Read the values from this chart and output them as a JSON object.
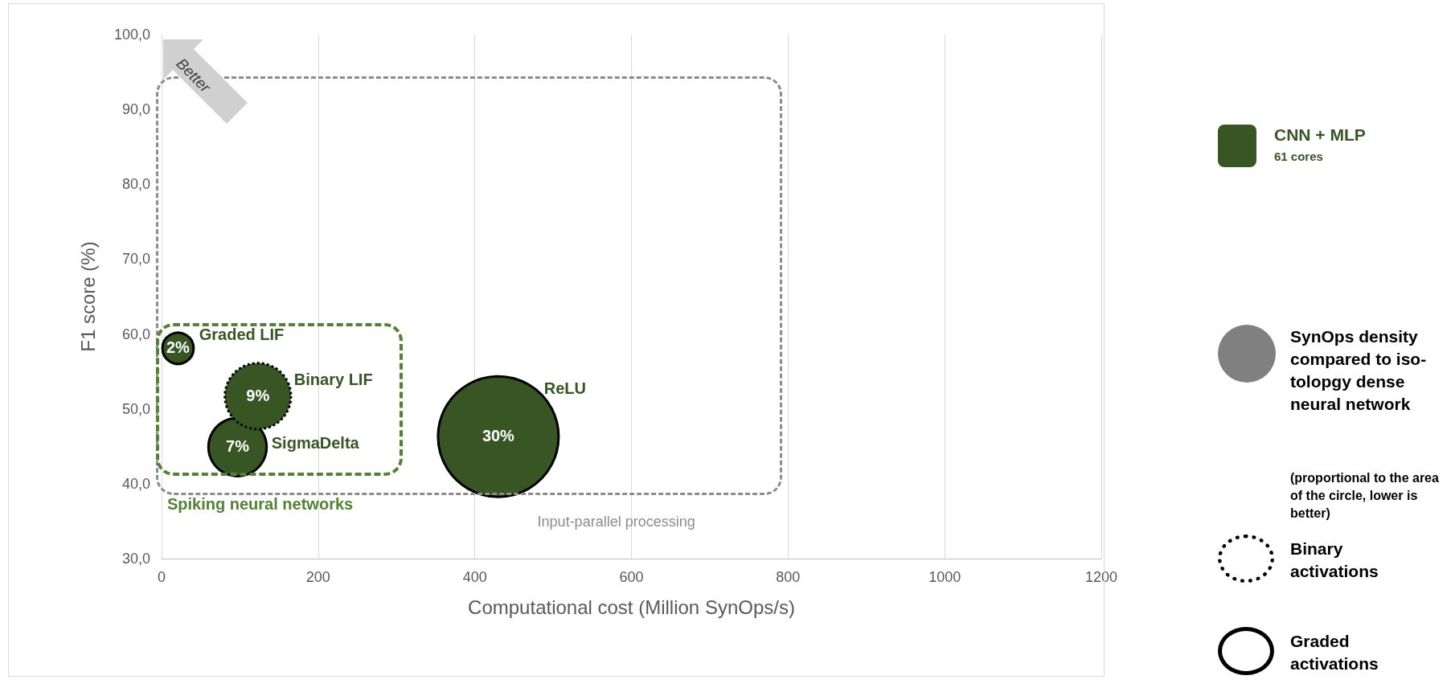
{
  "chart_data": {
    "type": "bubble",
    "xlabel": "Computational cost (Million SynOps/s)",
    "ylabel": "F1 score (%)",
    "xlim": [
      0,
      1200
    ],
    "xticks": [
      0,
      200,
      400,
      600,
      800,
      1000,
      1200
    ],
    "ylim": [
      30,
      100
    ],
    "yticks": [
      {
        "value": 30,
        "label": "30,0"
      },
      {
        "value": 40,
        "label": "40,0"
      },
      {
        "value": 50,
        "label": "50,0"
      },
      {
        "value": 60,
        "label": "60,0"
      },
      {
        "value": 70,
        "label": "70,0"
      },
      {
        "value": 80,
        "label": "80,0"
      },
      {
        "value": 90,
        "label": "90,0"
      },
      {
        "value": 100,
        "label": "100,0"
      }
    ],
    "grid": "x",
    "legend": "right",
    "series": [
      {
        "name": "Graded activations",
        "color": "#375623",
        "line_style": "solid",
        "x": [
          21,
          97,
          430
        ],
        "values": [
          58.1,
          44.9,
          46.3
        ],
        "sizes": [
          0.067,
          0.233,
          1
        ]
      },
      {
        "name": "Binary activations",
        "color": "#375623",
        "line_style": "dotted",
        "x": [
          123
        ],
        "values": [
          51.7
        ],
        "sizes": [
          0.3
        ]
      }
    ],
    "annotations": [
      "Better",
      "Spiking neural networks",
      "Input-parallel processing",
      "CNN + MLP",
      "61 cores",
      "SynOps density compared to iso-tolopgy dense neural network",
      "(proportional to the area of the circle, lower is better)",
      "Graded LIF",
      "Binary LIF",
      "SigmaDelta",
      "ReLU",
      {
        "text": "2%",
        "x": 21,
        "y": 58.1
      },
      {
        "text": "7%",
        "x": 97,
        "y": 44.9
      },
      {
        "text": "30%",
        "x": 430,
        "y": 46.3
      },
      {
        "text": "9%",
        "x": 123,
        "y": 51.7
      }
    ]
  }
}
